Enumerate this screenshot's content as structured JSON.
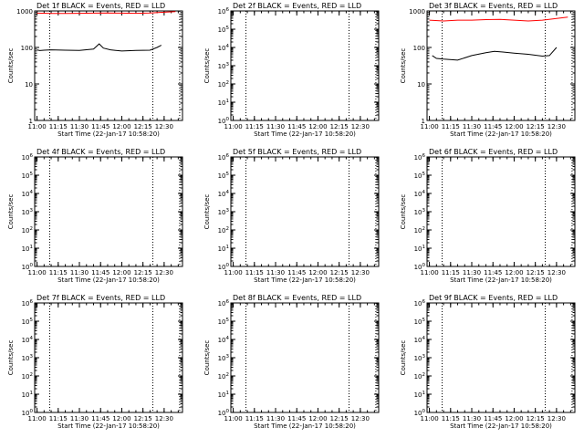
{
  "chart_data": [
    {
      "type": "line",
      "title": "Det 1f BLACK = Events, RED = LLD",
      "xlabel": "Start Time (22-Jan-17 10:58:20)",
      "ylabel": "Counts/sec",
      "yscale": "log",
      "ylim": [
        1,
        1000
      ],
      "xlim": [
        "10:58:20",
        "12:43"
      ],
      "x_ticks": [
        "11:00",
        "11:15",
        "11:30",
        "11:45",
        "12:00",
        "12:15",
        "12:30"
      ],
      "y_ticks": [
        "1",
        "10",
        "100",
        "1000"
      ],
      "vlines": [
        "11:09",
        "12:22",
        "12:41"
      ],
      "series": [
        {
          "color": "#ff0000",
          "x": [
            "11:00",
            "11:10",
            "11:20",
            "11:30",
            "11:40",
            "11:50",
            "12:00",
            "12:10",
            "12:20",
            "12:30",
            "12:38"
          ],
          "y": [
            870,
            850,
            850,
            860,
            870,
            880,
            870,
            860,
            880,
            920,
            960
          ]
        },
        {
          "color": "#000000",
          "x": [
            "11:00",
            "11:02",
            "11:05",
            "11:10",
            "11:20",
            "11:30",
            "11:40",
            "11:44",
            "11:47",
            "11:52",
            "12:00",
            "12:10",
            "12:20",
            "12:25",
            "12:28"
          ],
          "y": [
            85,
            82,
            84,
            86,
            84,
            83,
            90,
            125,
            96,
            86,
            80,
            83,
            84,
            100,
            115
          ]
        }
      ]
    },
    {
      "type": "line",
      "title": "Det 2f BLACK = Events, RED = LLD",
      "xlabel": "Start Time (22-Jan-17 10:58:20)",
      "ylabel": "Counts/sec",
      "yscale": "log",
      "ylim": [
        1,
        1000000
      ],
      "xlim": [
        "10:58:20",
        "12:43"
      ],
      "x_ticks": [
        "11:00",
        "11:15",
        "11:30",
        "11:45",
        "12:00",
        "12:15",
        "12:30"
      ],
      "y_ticks": [
        "10^0",
        "10^1",
        "10^2",
        "10^3",
        "10^4",
        "10^5",
        "10^6"
      ],
      "vlines": [
        "11:09",
        "12:22",
        "12:41"
      ],
      "series": []
    },
    {
      "type": "line",
      "title": "Det 3f BLACK = Events, RED = LLD",
      "xlabel": "Start Time (22-Jan-17 10:58:20)",
      "ylabel": "Counts/sec",
      "yscale": "log",
      "ylim": [
        1,
        1000
      ],
      "xlim": [
        "10:58:20",
        "12:43"
      ],
      "x_ticks": [
        "11:00",
        "11:15",
        "11:30",
        "11:45",
        "12:00",
        "12:15",
        "12:30"
      ],
      "y_ticks": [
        "1",
        "10",
        "100",
        "1000"
      ],
      "vlines": [
        "11:09",
        "12:22",
        "12:41"
      ],
      "series": [
        {
          "color": "#ff0000",
          "x": [
            "11:00",
            "11:10",
            "11:20",
            "11:30",
            "11:40",
            "11:50",
            "12:00",
            "12:10",
            "12:20",
            "12:30",
            "12:38"
          ],
          "y": [
            560,
            530,
            560,
            560,
            580,
            590,
            560,
            530,
            560,
            620,
            680
          ]
        },
        {
          "color": "#000000",
          "x": [
            "11:02",
            "11:05",
            "11:10",
            "11:20",
            "11:30",
            "11:40",
            "11:46",
            "11:52",
            "12:00",
            "12:10",
            "12:20",
            "12:25",
            "12:30"
          ],
          "y": [
            60,
            50,
            48,
            45,
            60,
            72,
            78,
            75,
            70,
            65,
            58,
            60,
            100
          ]
        }
      ]
    },
    {
      "type": "line",
      "title": "Det 4f BLACK = Events, RED = LLD",
      "xlabel": "Start Time (22-Jan-17 10:58:20)",
      "ylabel": "Counts/sec",
      "yscale": "log",
      "ylim": [
        1,
        1000000
      ],
      "xlim": [
        "10:58:20",
        "12:43"
      ],
      "x_ticks": [
        "11:00",
        "11:15",
        "11:30",
        "11:45",
        "12:00",
        "12:15",
        "12:30"
      ],
      "y_ticks": [
        "10^0",
        "10^1",
        "10^2",
        "10^3",
        "10^4",
        "10^5",
        "10^6"
      ],
      "vlines": [
        "11:09",
        "12:22",
        "12:41"
      ],
      "series": []
    },
    {
      "type": "line",
      "title": "Det 5f BLACK = Events, RED = LLD",
      "xlabel": "Start Time (22-Jan-17 10:58:20)",
      "ylabel": "Counts/sec",
      "yscale": "log",
      "ylim": [
        1,
        1000000
      ],
      "xlim": [
        "10:58:20",
        "12:43"
      ],
      "x_ticks": [
        "11:00",
        "11:15",
        "11:30",
        "11:45",
        "12:00",
        "12:15",
        "12:30"
      ],
      "y_ticks": [
        "10^0",
        "10^1",
        "10^2",
        "10^3",
        "10^4",
        "10^5",
        "10^6"
      ],
      "vlines": [
        "11:09",
        "12:22",
        "12:41"
      ],
      "series": []
    },
    {
      "type": "line",
      "title": "Det 6f BLACK = Events, RED = LLD",
      "xlabel": "Start Time (22-Jan-17 10:58:20)",
      "ylabel": "Counts/sec",
      "yscale": "log",
      "ylim": [
        1,
        1000000
      ],
      "xlim": [
        "10:58:20",
        "12:43"
      ],
      "x_ticks": [
        "11:00",
        "11:15",
        "11:30",
        "11:45",
        "12:00",
        "12:15",
        "12:30"
      ],
      "y_ticks": [
        "10^0",
        "10^1",
        "10^2",
        "10^3",
        "10^4",
        "10^5",
        "10^6"
      ],
      "vlines": [
        "11:09",
        "12:22",
        "12:41"
      ],
      "series": []
    },
    {
      "type": "line",
      "title": "Det 7f BLACK = Events, RED = LLD",
      "xlabel": "Start Time (22-Jan-17 10:58:20)",
      "ylabel": "Counts/sec",
      "yscale": "log",
      "ylim": [
        1,
        1000000
      ],
      "xlim": [
        "10:58:20",
        "12:43"
      ],
      "x_ticks": [
        "11:00",
        "11:15",
        "11:30",
        "11:45",
        "12:00",
        "12:15",
        "12:30"
      ],
      "y_ticks": [
        "10^0",
        "10^1",
        "10^2",
        "10^3",
        "10^4",
        "10^5",
        "10^6"
      ],
      "vlines": [
        "11:09",
        "12:22",
        "12:41"
      ],
      "series": []
    },
    {
      "type": "line",
      "title": "Det 8f BLACK = Events, RED = LLD",
      "xlabel": "Start Time (22-Jan-17 10:58:20)",
      "ylabel": "Counts/sec",
      "yscale": "log",
      "ylim": [
        1,
        1000000
      ],
      "xlim": [
        "10:58:20",
        "12:43"
      ],
      "x_ticks": [
        "11:00",
        "11:15",
        "11:30",
        "11:45",
        "12:00",
        "12:15",
        "12:30"
      ],
      "y_ticks": [
        "10^0",
        "10^1",
        "10^2",
        "10^3",
        "10^4",
        "10^5",
        "10^6"
      ],
      "vlines": [
        "11:09",
        "12:22",
        "12:41"
      ],
      "series": []
    },
    {
      "type": "line",
      "title": "Det 9f BLACK = Events, RED = LLD",
      "xlabel": "Start Time (22-Jan-17 10:58:20)",
      "ylabel": "Counts/sec",
      "yscale": "log",
      "ylim": [
        1,
        1000000
      ],
      "xlim": [
        "10:58:20",
        "12:43"
      ],
      "x_ticks": [
        "11:00",
        "11:15",
        "11:30",
        "11:45",
        "12:00",
        "12:15",
        "12:30"
      ],
      "y_ticks": [
        "10^0",
        "10^1",
        "10^2",
        "10^3",
        "10^4",
        "10^5",
        "10^6"
      ],
      "vlines": [
        "11:09",
        "12:22",
        "12:41"
      ],
      "series": []
    }
  ]
}
